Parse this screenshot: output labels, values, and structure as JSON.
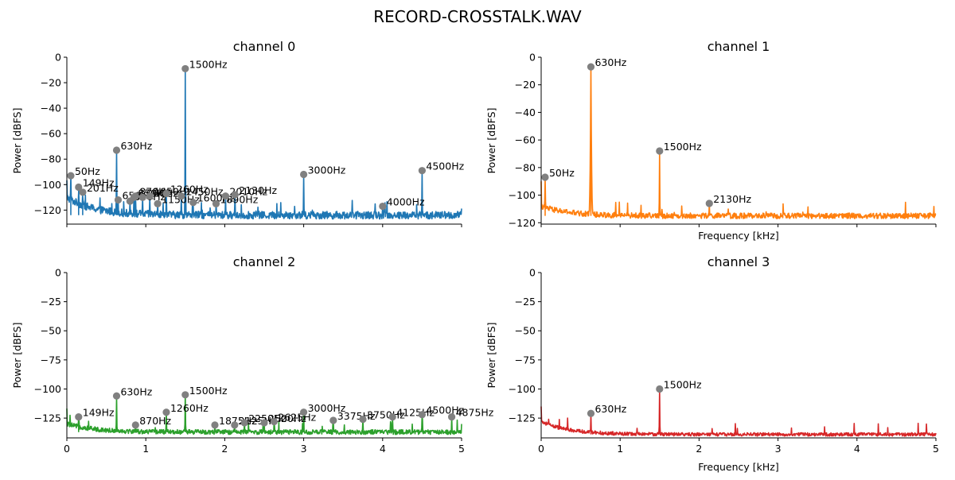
{
  "figure": {
    "title": "RECORD-CROSSTALK.WAV",
    "colors": {
      "peak_marker": "#808080",
      "axis": "#000000",
      "text": "#000000"
    }
  },
  "chart_data": [
    {
      "type": "line",
      "title": "channel 0",
      "ylabel": "Power [dBFS]",
      "xlabel": "",
      "xlim": [
        0,
        5
      ],
      "ylim": [
        -131,
        0
      ],
      "x_ticks": [
        0,
        1,
        2,
        3,
        4,
        5
      ],
      "x_tick_labels_shown": false,
      "y_ticks": [
        0,
        -20,
        -40,
        -60,
        -80,
        -100,
        -120
      ],
      "color": "#1f77b4",
      "grid": false,
      "noise_floor": {
        "start": -110,
        "end": -124,
        "spread": 3
      },
      "peaks": [
        {
          "f": 0.05,
          "db": -93,
          "label": "50Hz"
        },
        {
          "f": 0.149,
          "db": -102,
          "label": "149Hz"
        },
        {
          "f": 0.201,
          "db": -106,
          "label": "201Hz"
        },
        {
          "f": 0.63,
          "db": -73,
          "label": "630Hz"
        },
        {
          "f": 0.65,
          "db": -112,
          "label": "650Hz"
        },
        {
          "f": 0.8,
          "db": -113,
          "label": "800Hz"
        },
        {
          "f": 0.85,
          "db": -110,
          "label": "850Hz"
        },
        {
          "f": 0.87,
          "db": -109,
          "label": "870Hz"
        },
        {
          "f": 0.96,
          "db": -110,
          "label": "960Hz"
        },
        {
          "f": 1.05,
          "db": -109,
          "label": "1050Hz"
        },
        {
          "f": 1.15,
          "db": -115,
          "label": "1150Hz"
        },
        {
          "f": 1.26,
          "db": -107,
          "label": "1260Hz"
        },
        {
          "f": 1.45,
          "db": -109,
          "label": "1450Hz"
        },
        {
          "f": 1.5,
          "db": -9,
          "label": "1500Hz"
        },
        {
          "f": 1.6,
          "db": -114,
          "label": "1600Hz"
        },
        {
          "f": 1.89,
          "db": -115,
          "label": "1890Hz"
        },
        {
          "f": 2.01,
          "db": -109,
          "label": "2010Hz"
        },
        {
          "f": 2.13,
          "db": -108,
          "label": "2130Hz"
        },
        {
          "f": 3.0,
          "db": -92,
          "label": "3000Hz"
        },
        {
          "f": 4.0,
          "db": -117,
          "label": "4000Hz"
        },
        {
          "f": 4.5,
          "db": -89,
          "label": "4500Hz"
        }
      ]
    },
    {
      "type": "line",
      "title": "channel 1",
      "ylabel": "Power [dBFS]",
      "xlabel": "Frequency [kHz]",
      "xlim": [
        0,
        5
      ],
      "ylim": [
        -121,
        0
      ],
      "x_ticks": [
        0,
        1,
        2,
        3,
        4,
        5
      ],
      "x_tick_labels_shown": false,
      "y_ticks": [
        0,
        -20,
        -40,
        -60,
        -80,
        -100,
        -120
      ],
      "color": "#ff7f0e",
      "grid": false,
      "noise_floor": {
        "start": -108,
        "end": -115,
        "spread": 2
      },
      "peaks": [
        {
          "f": 0.05,
          "db": -87,
          "label": "50Hz"
        },
        {
          "f": 0.63,
          "db": -7,
          "label": "630Hz",
          "wide": true
        },
        {
          "f": 1.5,
          "db": -68,
          "label": "1500Hz"
        },
        {
          "f": 2.13,
          "db": -106,
          "label": "2130Hz"
        }
      ]
    },
    {
      "type": "line",
      "title": "channel 2",
      "ylabel": "Power [dBFS]",
      "xlabel": "",
      "xlim": [
        0,
        5
      ],
      "ylim": [
        -142,
        0
      ],
      "x_ticks": [
        0,
        1,
        2,
        3,
        4,
        5
      ],
      "x_tick_labels_shown": true,
      "y_ticks": [
        0,
        -25,
        -50,
        -75,
        -100,
        -125
      ],
      "color": "#2ca02c",
      "grid": false,
      "noise_floor": {
        "start": -130,
        "end": -137,
        "spread": 2
      },
      "peaks": [
        {
          "f": 0.149,
          "db": -124,
          "label": "149Hz"
        },
        {
          "f": 0.63,
          "db": -106,
          "label": "630Hz"
        },
        {
          "f": 0.87,
          "db": -131,
          "label": "870Hz"
        },
        {
          "f": 1.26,
          "db": -120,
          "label": "1260Hz"
        },
        {
          "f": 1.5,
          "db": -105,
          "label": "1500Hz"
        },
        {
          "f": 1.875,
          "db": -131,
          "label": "1875Hz"
        },
        {
          "f": 2.125,
          "db": -131,
          "label": "2125Hz"
        },
        {
          "f": 2.25,
          "db": -129,
          "label": "2250Hz"
        },
        {
          "f": 2.5,
          "db": -129,
          "label": "2500Hz"
        },
        {
          "f": 2.625,
          "db": -128,
          "label": "2625Hz"
        },
        {
          "f": 3.0,
          "db": -120,
          "label": "3000Hz"
        },
        {
          "f": 3.375,
          "db": -127,
          "label": "3375Hz"
        },
        {
          "f": 3.75,
          "db": -126,
          "label": "3750Hz"
        },
        {
          "f": 4.125,
          "db": -124,
          "label": "4125Hz"
        },
        {
          "f": 4.5,
          "db": -122,
          "label": "4500Hz"
        },
        {
          "f": 4.875,
          "db": -124,
          "label": "4875Hz"
        }
      ]
    },
    {
      "type": "line",
      "title": "channel 3",
      "ylabel": "Power [dBFS]",
      "xlabel": "Frequency [kHz]",
      "xlim": [
        0,
        5
      ],
      "ylim": [
        -142,
        0
      ],
      "x_ticks": [
        0,
        1,
        2,
        3,
        4,
        5
      ],
      "x_tick_labels_shown": true,
      "y_ticks": [
        0,
        -25,
        -50,
        -75,
        -100,
        -125
      ],
      "color": "#d62728",
      "grid": false,
      "noise_floor": {
        "start": -128,
        "end": -139,
        "spread": 1.5
      },
      "peaks": [
        {
          "f": 0.63,
          "db": -121,
          "label": "630Hz"
        },
        {
          "f": 1.5,
          "db": -100,
          "label": "1500Hz"
        }
      ]
    }
  ]
}
